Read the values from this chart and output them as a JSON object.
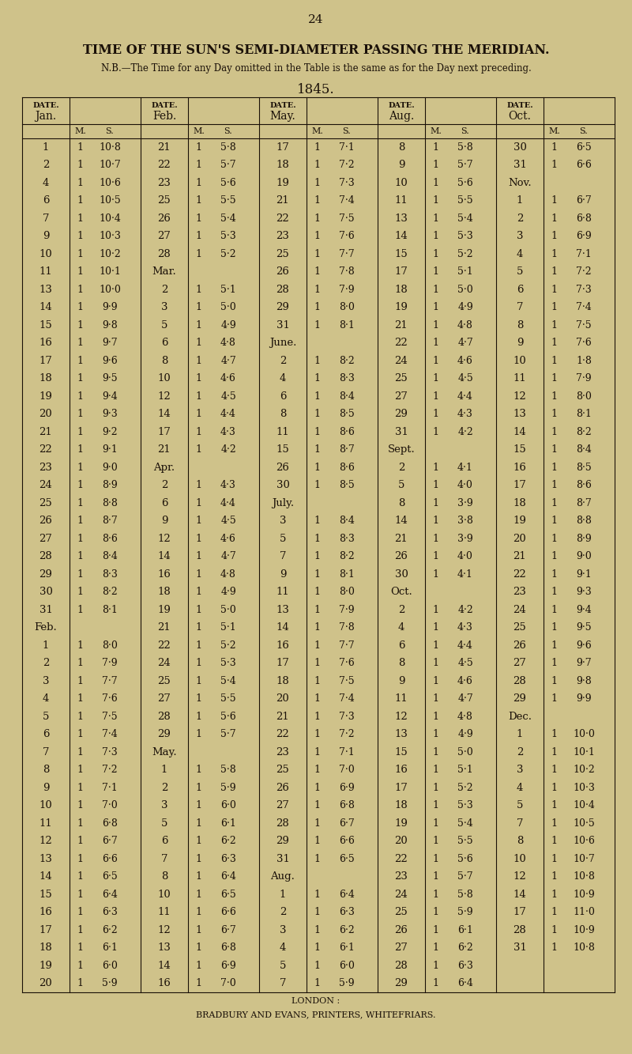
{
  "page_number": "24",
  "title": "TIME OF THE SUN'S SEMI-DIAMETER PASSING THE MERIDIAN.",
  "subtitle": "N.B.—The Time for any Day omitted in the Table is the same as for the Day next preceding.",
  "year": "1845.",
  "footer1": "LONDON :",
  "footer2": "BRADBURY AND EVANS, PRINTERS, WHITEFRIARS.",
  "bg_color": "#cfc28a",
  "text_color": "#1a1008",
  "month_headers": [
    "Jan.",
    "Feb.",
    "May.",
    "Aug.",
    "Oct."
  ],
  "table_data": [
    [
      "1",
      "1",
      "10·8",
      "21",
      "1",
      "5·8",
      "17",
      "1",
      "7·1",
      "8",
      "1",
      "5·8",
      "30",
      "1",
      "6·5"
    ],
    [
      "2",
      "1",
      "10·7",
      "22",
      "1",
      "5·7",
      "18",
      "1",
      "7·2",
      "9",
      "1",
      "5·7",
      "31",
      "1",
      "6·6"
    ],
    [
      "4",
      "1",
      "10·6",
      "23",
      "1",
      "5·6",
      "19",
      "1",
      "7·3",
      "10",
      "1",
      "5·6",
      "Nov.",
      "",
      ""
    ],
    [
      "6",
      "1",
      "10·5",
      "25",
      "1",
      "5·5",
      "21",
      "1",
      "7·4",
      "11",
      "1",
      "5·5",
      "1",
      "1",
      "6·7"
    ],
    [
      "7",
      "1",
      "10·4",
      "26",
      "1",
      "5·4",
      "22",
      "1",
      "7·5",
      "13",
      "1",
      "5·4",
      "2",
      "1",
      "6·8"
    ],
    [
      "9",
      "1",
      "10·3",
      "27",
      "1",
      "5·3",
      "23",
      "1",
      "7·6",
      "14",
      "1",
      "5·3",
      "3",
      "1",
      "6·9"
    ],
    [
      "10",
      "1",
      "10·2",
      "28",
      "1",
      "5·2",
      "25",
      "1",
      "7·7",
      "15",
      "1",
      "5·2",
      "4",
      "1",
      "7·1"
    ],
    [
      "11",
      "1",
      "10·1",
      "Mar.",
      "",
      "",
      "26",
      "1",
      "7·8",
      "17",
      "1",
      "5·1",
      "5",
      "1",
      "7·2"
    ],
    [
      "13",
      "1",
      "10·0",
      "2",
      "1",
      "5·1",
      "28",
      "1",
      "7·9",
      "18",
      "1",
      "5·0",
      "6",
      "1",
      "7·3"
    ],
    [
      "14",
      "1",
      "9·9",
      "3",
      "1",
      "5·0",
      "29",
      "1",
      "8·0",
      "19",
      "1",
      "4·9",
      "7",
      "1",
      "7·4"
    ],
    [
      "15",
      "1",
      "9·8",
      "5",
      "1",
      "4·9",
      "31",
      "1",
      "8·1",
      "21",
      "1",
      "4·8",
      "8",
      "1",
      "7·5"
    ],
    [
      "16",
      "1",
      "9·7",
      "6",
      "1",
      "4·8",
      "June.",
      "",
      "",
      "22",
      "1",
      "4·7",
      "9",
      "1",
      "7·6"
    ],
    [
      "17",
      "1",
      "9·6",
      "8",
      "1",
      "4·7",
      "2",
      "1",
      "8·2",
      "24",
      "1",
      "4·6",
      "10",
      "1",
      "1·8"
    ],
    [
      "18",
      "1",
      "9·5",
      "10",
      "1",
      "4·6",
      "4",
      "1",
      "8·3",
      "25",
      "1",
      "4·5",
      "11",
      "1",
      "7·9"
    ],
    [
      "19",
      "1",
      "9·4",
      "12",
      "1",
      "4·5",
      "6",
      "1",
      "8·4",
      "27",
      "1",
      "4·4",
      "12",
      "1",
      "8·0"
    ],
    [
      "20",
      "1",
      "9·3",
      "14",
      "1",
      "4·4",
      "8",
      "1",
      "8·5",
      "29",
      "1",
      "4·3",
      "13",
      "1",
      "8·1"
    ],
    [
      "21",
      "1",
      "9·2",
      "17",
      "1",
      "4·3",
      "11",
      "1",
      "8·6",
      "31",
      "1",
      "4·2",
      "14",
      "1",
      "8·2"
    ],
    [
      "22",
      "1",
      "9·1",
      "21",
      "1",
      "4·2",
      "15",
      "1",
      "8·7",
      "Sept.",
      "",
      "",
      "15",
      "1",
      "8·4"
    ],
    [
      "23",
      "1",
      "9·0",
      "Apr.",
      "",
      "",
      "26",
      "1",
      "8·6",
      "2",
      "1",
      "4·1",
      "16",
      "1",
      "8·5"
    ],
    [
      "24",
      "1",
      "8·9",
      "2",
      "1",
      "4·3",
      "30",
      "1",
      "8·5",
      "5",
      "1",
      "4·0",
      "17",
      "1",
      "8·6"
    ],
    [
      "25",
      "1",
      "8·8",
      "6",
      "1",
      "4·4",
      "July.",
      "",
      "",
      "8",
      "1",
      "3·9",
      "18",
      "1",
      "8·7"
    ],
    [
      "26",
      "1",
      "8·7",
      "9",
      "1",
      "4·5",
      "3",
      "1",
      "8·4",
      "14",
      "1",
      "3·8",
      "19",
      "1",
      "8·8"
    ],
    [
      "27",
      "1",
      "8·6",
      "12",
      "1",
      "4·6",
      "5",
      "1",
      "8·3",
      "21",
      "1",
      "3·9",
      "20",
      "1",
      "8·9"
    ],
    [
      "28",
      "1",
      "8·4",
      "14",
      "1",
      "4·7",
      "7",
      "1",
      "8·2",
      "26",
      "1",
      "4·0",
      "21",
      "1",
      "9·0"
    ],
    [
      "29",
      "1",
      "8·3",
      "16",
      "1",
      "4·8",
      "9",
      "1",
      "8·1",
      "30",
      "1",
      "4·1",
      "22",
      "1",
      "9·1"
    ],
    [
      "30",
      "1",
      "8·2",
      "18",
      "1",
      "4·9",
      "11",
      "1",
      "8·0",
      "Oct.",
      "",
      "",
      "23",
      "1",
      "9·3"
    ],
    [
      "31",
      "1",
      "8·1",
      "19",
      "1",
      "5·0",
      "13",
      "1",
      "7·9",
      "2",
      "1",
      "4·2",
      "24",
      "1",
      "9·4"
    ],
    [
      "Feb.",
      "",
      "",
      "21",
      "1",
      "5·1",
      "14",
      "1",
      "7·8",
      "4",
      "1",
      "4·3",
      "25",
      "1",
      "9·5"
    ],
    [
      "1",
      "1",
      "8·0",
      "22",
      "1",
      "5·2",
      "16",
      "1",
      "7·7",
      "6",
      "1",
      "4·4",
      "26",
      "1",
      "9·6"
    ],
    [
      "2",
      "1",
      "7·9",
      "24",
      "1",
      "5·3",
      "17",
      "1",
      "7·6",
      "8",
      "1",
      "4·5",
      "27",
      "1",
      "9·7"
    ],
    [
      "3",
      "1",
      "7·7",
      "25",
      "1",
      "5·4",
      "18",
      "1",
      "7·5",
      "9",
      "1",
      "4·6",
      "28",
      "1",
      "9·8"
    ],
    [
      "4",
      "1",
      "7·6",
      "27",
      "1",
      "5·5",
      "20",
      "1",
      "7·4",
      "11",
      "1",
      "4·7",
      "29",
      "1",
      "9·9"
    ],
    [
      "5",
      "1",
      "7·5",
      "28",
      "1",
      "5·6",
      "21",
      "1",
      "7·3",
      "12",
      "1",
      "4·8",
      "Dec.",
      "",
      ""
    ],
    [
      "6",
      "1",
      "7·4",
      "29",
      "1",
      "5·7",
      "22",
      "1",
      "7·2",
      "13",
      "1",
      "4·9",
      "1",
      "1",
      "10·0"
    ],
    [
      "7",
      "1",
      "7·3",
      "May.",
      "",
      "",
      "23",
      "1",
      "7·1",
      "15",
      "1",
      "5·0",
      "2",
      "1",
      "10·1"
    ],
    [
      "8",
      "1",
      "7·2",
      "1",
      "1",
      "5·8",
      "25",
      "1",
      "7·0",
      "16",
      "1",
      "5·1",
      "3",
      "1",
      "10·2"
    ],
    [
      "9",
      "1",
      "7·1",
      "2",
      "1",
      "5·9",
      "26",
      "1",
      "6·9",
      "17",
      "1",
      "5·2",
      "4",
      "1",
      "10·3"
    ],
    [
      "10",
      "1",
      "7·0",
      "3",
      "1",
      "6·0",
      "27",
      "1",
      "6·8",
      "18",
      "1",
      "5·3",
      "5",
      "1",
      "10·4"
    ],
    [
      "11",
      "1",
      "6·8",
      "5",
      "1",
      "6·1",
      "28",
      "1",
      "6·7",
      "19",
      "1",
      "5·4",
      "7",
      "1",
      "10·5"
    ],
    [
      "12",
      "1",
      "6·7",
      "6",
      "1",
      "6·2",
      "29",
      "1",
      "6·6",
      "20",
      "1",
      "5·5",
      "8",
      "1",
      "10·6"
    ],
    [
      "13",
      "1",
      "6·6",
      "7",
      "1",
      "6·3",
      "31",
      "1",
      "6·5",
      "22",
      "1",
      "5·6",
      "10",
      "1",
      "10·7"
    ],
    [
      "14",
      "1",
      "6·5",
      "8",
      "1",
      "6·4",
      "Aug.",
      "",
      "",
      "23",
      "1",
      "5·7",
      "12",
      "1",
      "10·8"
    ],
    [
      "15",
      "1",
      "6·4",
      "10",
      "1",
      "6·5",
      "1",
      "1",
      "6·4",
      "24",
      "1",
      "5·8",
      "14",
      "1",
      "10·9"
    ],
    [
      "16",
      "1",
      "6·3",
      "11",
      "1",
      "6·6",
      "2",
      "1",
      "6·3",
      "25",
      "1",
      "5·9",
      "17",
      "1",
      "11·0"
    ],
    [
      "17",
      "1",
      "6·2",
      "12",
      "1",
      "6·7",
      "3",
      "1",
      "6·2",
      "26",
      "1",
      "6·1",
      "28",
      "1",
      "10·9"
    ],
    [
      "18",
      "1",
      "6·1",
      "13",
      "1",
      "6·8",
      "4",
      "1",
      "6·1",
      "27",
      "1",
      "6·2",
      "31",
      "1",
      "10·8"
    ],
    [
      "19",
      "1",
      "6·0",
      "14",
      "1",
      "6·9",
      "5",
      "1",
      "6·0",
      "28",
      "1",
      "6·3",
      "",
      "",
      ""
    ],
    [
      "20",
      "1",
      "5·9",
      "16",
      "1",
      "7·0",
      "7",
      "1",
      "5·9",
      "29",
      "1",
      "6·4",
      "",
      "",
      ""
    ]
  ]
}
